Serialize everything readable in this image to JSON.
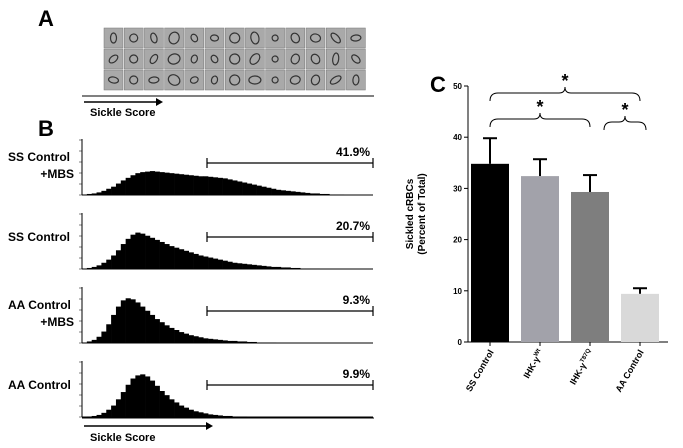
{
  "figure": {
    "panel_a": {
      "letter": "A",
      "axis_label": "Sickle Score"
    },
    "panel_b": {
      "letter": "B",
      "axis_label": "Sickle Score"
    }
  },
  "chart_data": [
    {
      "type": "histogram",
      "name_lines": [
        "SS Control",
        "+MBS"
      ],
      "gate_label": "41.9%",
      "color": "#000000",
      "ylim": [
        0,
        100
      ],
      "values": [
        1,
        2,
        3,
        5,
        8,
        12,
        16,
        22,
        28,
        33,
        38,
        42,
        44,
        45,
        46,
        45,
        44,
        43,
        42,
        41,
        40,
        39,
        38,
        37,
        36,
        36,
        35,
        34,
        33,
        32,
        30,
        28,
        26,
        24,
        22,
        20,
        18,
        16,
        14,
        12,
        10,
        9,
        8,
        7,
        6,
        5,
        4,
        3,
        3,
        2,
        2,
        1,
        1,
        1,
        0,
        0,
        0,
        0,
        0,
        0
      ]
    },
    {
      "type": "histogram",
      "name_lines": [
        "SS Control"
      ],
      "gate_label": "20.7%",
      "color": "#000000",
      "ylim": [
        0,
        100
      ],
      "values": [
        1,
        2,
        4,
        7,
        12,
        18,
        26,
        36,
        48,
        58,
        66,
        70,
        68,
        64,
        60,
        56,
        52,
        48,
        44,
        41,
        38,
        35,
        32,
        29,
        26,
        24,
        22,
        20,
        18,
        16,
        14,
        12,
        11,
        10,
        9,
        8,
        7,
        6,
        5,
        4,
        4,
        3,
        3,
        2,
        2,
        1,
        1,
        1,
        1,
        0,
        0,
        0,
        0,
        0,
        0,
        0,
        0,
        0,
        0,
        0
      ]
    },
    {
      "type": "histogram",
      "name_lines": [
        "AA Control",
        "+MBS"
      ],
      "gate_label": "9.3%",
      "color": "#000000",
      "ylim": [
        0,
        100
      ],
      "values": [
        1,
        3,
        6,
        12,
        22,
        36,
        54,
        70,
        82,
        86,
        84,
        78,
        70,
        62,
        54,
        46,
        40,
        34,
        29,
        25,
        21,
        18,
        15,
        13,
        11,
        9,
        8,
        7,
        6,
        5,
        4,
        4,
        3,
        3,
        2,
        2,
        1,
        1,
        1,
        1,
        0,
        0,
        0,
        0,
        0,
        0,
        0,
        0,
        0,
        0,
        0,
        0,
        0,
        0,
        0,
        0,
        0,
        0,
        0,
        0
      ]
    },
    {
      "type": "histogram",
      "name_lines": [
        "AA Control"
      ],
      "gate_label": "9.9%",
      "color": "#000000",
      "ylim": [
        0,
        100
      ],
      "values": [
        0,
        1,
        2,
        4,
        8,
        14,
        22,
        34,
        48,
        62,
        74,
        80,
        82,
        78,
        70,
        60,
        50,
        42,
        34,
        28,
        22,
        18,
        14,
        11,
        9,
        7,
        5,
        4,
        3,
        2,
        2,
        1,
        1,
        1,
        0,
        0,
        0,
        0,
        0,
        0,
        0,
        0,
        0,
        0,
        0,
        0,
        0,
        0,
        0,
        0,
        0,
        0,
        0,
        0,
        0,
        0,
        0,
        0,
        0,
        0
      ]
    },
    {
      "type": "bar",
      "panel_letter": "C",
      "ylabel_lines": [
        "Sickled cRBCs",
        "(Percent of Total)"
      ],
      "categories": [
        "SS Control",
        "IHK-γ",
        "IHK-γ",
        "AA Control"
      ],
      "category_superscripts": [
        null,
        "Wt",
        "T87Q",
        null
      ],
      "values": [
        34.8,
        32.4,
        29.3,
        9.4
      ],
      "errors": [
        5.0,
        3.3,
        3.3,
        1.1
      ],
      "colors": [
        "#000000",
        "#a2a2aa",
        "#7e7e7e",
        "#d9d9d9"
      ],
      "ylim": [
        0,
        50
      ],
      "yticks": [
        0,
        10,
        20,
        30,
        40,
        50
      ],
      "annotations": [
        "*",
        "*",
        "*"
      ]
    }
  ]
}
